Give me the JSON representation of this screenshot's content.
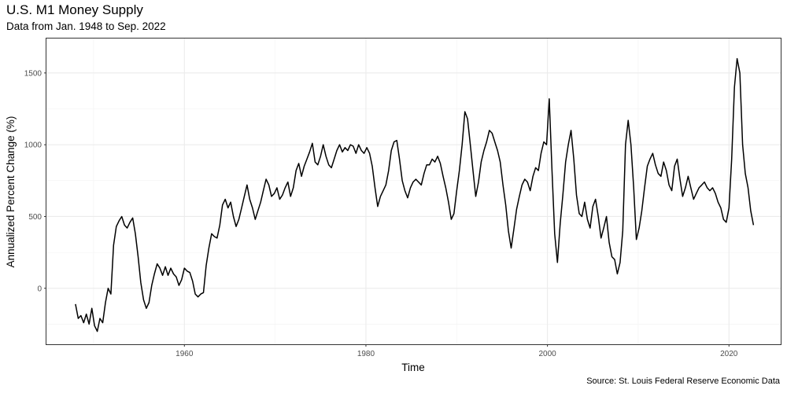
{
  "chart_data": {
    "type": "line",
    "title": "U.S. M1 Money Supply",
    "subtitle": "Data from Jan. 1948 to Sep. 2022",
    "xlabel": "Time",
    "ylabel": "Annualized Percent Change (%)",
    "caption": "Source: St. Louis Federal Reserve Economic Data",
    "xlim": [
      1944.8,
      2025.7
    ],
    "ylim": [
      -390,
      1740
    ],
    "x_ticks": [
      1960,
      1980,
      2000,
      2020
    ],
    "y_ticks": [
      0,
      500,
      1000,
      1500
    ],
    "grid": true,
    "line_color": "#000000",
    "series": [
      {
        "x": [
          1948.0,
          1948.3,
          1948.6,
          1948.9,
          1949.2,
          1949.5,
          1949.8,
          1950.1,
          1950.4,
          1950.7,
          1951.0,
          1951.3,
          1951.6,
          1951.9,
          1952.2,
          1952.5,
          1952.8,
          1953.1,
          1953.4,
          1953.7,
          1954.0,
          1954.3,
          1954.6,
          1954.9,
          1955.2,
          1955.5,
          1955.8,
          1956.1,
          1956.4,
          1956.7,
          1957.0,
          1957.3,
          1957.6,
          1957.9,
          1958.2,
          1958.5,
          1958.8,
          1959.1,
          1959.4,
          1959.7,
          1960.0,
          1960.3,
          1960.6,
          1960.9,
          1961.2,
          1961.5,
          1961.8,
          1962.1,
          1962.4,
          1962.7,
          1963.0,
          1963.3,
          1963.6,
          1963.9,
          1964.2,
          1964.5,
          1964.8,
          1965.1,
          1965.4,
          1965.7,
          1966.0,
          1966.3,
          1966.6,
          1966.9,
          1967.2,
          1967.5,
          1967.8,
          1968.1,
          1968.4,
          1968.7,
          1969.0,
          1969.3,
          1969.6,
          1969.9,
          1970.2,
          1970.5,
          1970.8,
          1971.1,
          1971.4,
          1971.7,
          1972.0,
          1972.3,
          1972.6,
          1972.9,
          1973.2,
          1973.5,
          1973.8,
          1974.1,
          1974.4,
          1974.7,
          1975.0,
          1975.3,
          1975.6,
          1975.9,
          1976.2,
          1976.5,
          1976.8,
          1977.1,
          1977.4,
          1977.7,
          1978.0,
          1978.3,
          1978.6,
          1978.9,
          1979.2,
          1979.5,
          1979.8,
          1980.1,
          1980.4,
          1980.7,
          1981.0,
          1981.3,
          1981.6,
          1981.9,
          1982.2,
          1982.5,
          1982.8,
          1983.1,
          1983.4,
          1983.7,
          1984.0,
          1984.3,
          1984.6,
          1984.9,
          1985.2,
          1985.5,
          1985.8,
          1986.1,
          1986.4,
          1986.7,
          1987.0,
          1987.3,
          1987.6,
          1987.9,
          1988.2,
          1988.5,
          1988.8,
          1989.1,
          1989.4,
          1989.7,
          1990.0,
          1990.3,
          1990.6,
          1990.9,
          1991.2,
          1991.5,
          1991.8,
          1992.1,
          1992.4,
          1992.7,
          1993.0,
          1993.3,
          1993.6,
          1993.9,
          1994.2,
          1994.5,
          1994.8,
          1995.1,
          1995.4,
          1995.7,
          1996.0,
          1996.3,
          1996.6,
          1996.9,
          1997.2,
          1997.5,
          1997.8,
          1998.1,
          1998.4,
          1998.7,
          1999.0,
          1999.3,
          1999.6,
          1999.9,
          2000.2,
          2000.5,
          2000.8,
          2001.1,
          2001.4,
          2001.7,
          2002.0,
          2002.3,
          2002.6,
          2002.9,
          2003.2,
          2003.5,
          2003.8,
          2004.1,
          2004.4,
          2004.7,
          2005.0,
          2005.3,
          2005.6,
          2005.9,
          2006.2,
          2006.5,
          2006.8,
          2007.1,
          2007.4,
          2007.7,
          2008.0,
          2008.3,
          2008.6,
          2008.9,
          2009.2,
          2009.5,
          2009.8,
          2010.1,
          2010.4,
          2010.7,
          2011.0,
          2011.3,
          2011.6,
          2011.9,
          2012.2,
          2012.5,
          2012.8,
          2013.1,
          2013.4,
          2013.7,
          2014.0,
          2014.3,
          2014.6,
          2014.9,
          2015.2,
          2015.5,
          2015.8,
          2016.1,
          2016.4,
          2016.7,
          2017.0,
          2017.3,
          2017.6,
          2017.9,
          2018.2,
          2018.5,
          2018.8,
          2019.1,
          2019.4,
          2019.7,
          2020.0,
          2020.3,
          2020.6,
          2020.9,
          2021.2,
          2021.5,
          2021.8,
          2022.1,
          2022.4,
          2022.7
        ],
        "y": [
          -110,
          -210,
          -190,
          -240,
          -180,
          -250,
          -140,
          -260,
          -300,
          -210,
          -240,
          -100,
          0,
          -40,
          300,
          430,
          470,
          500,
          440,
          420,
          460,
          490,
          380,
          220,
          40,
          -80,
          -140,
          -100,
          20,
          100,
          170,
          140,
          90,
          150,
          90,
          140,
          100,
          80,
          20,
          60,
          140,
          120,
          110,
          50,
          -40,
          -60,
          -40,
          -30,
          160,
          280,
          380,
          360,
          350,
          440,
          580,
          620,
          560,
          600,
          500,
          430,
          480,
          560,
          640,
          720,
          620,
          560,
          480,
          540,
          600,
          680,
          760,
          720,
          640,
          660,
          700,
          620,
          650,
          700,
          740,
          640,
          700,
          820,
          870,
          780,
          850,
          900,
          950,
          1010,
          880,
          860,
          920,
          1000,
          920,
          860,
          840,
          900,
          960,
          1000,
          950,
          980,
          960,
          1000,
          990,
          940,
          1000,
          960,
          940,
          980,
          940,
          850,
          700,
          570,
          640,
          680,
          720,
          820,
          960,
          1020,
          1030,
          900,
          750,
          680,
          630,
          700,
          740,
          760,
          740,
          720,
          800,
          860,
          860,
          900,
          880,
          920,
          870,
          780,
          700,
          600,
          480,
          520,
          680,
          820,
          1000,
          1230,
          1180,
          1000,
          820,
          640,
          740,
          880,
          960,
          1020,
          1100,
          1080,
          1020,
          960,
          880,
          720,
          580,
          400,
          280,
          410,
          550,
          640,
          720,
          760,
          740,
          680,
          780,
          840,
          820,
          940,
          1020,
          1000,
          1320,
          820,
          380,
          180,
          450,
          650,
          880,
          1000,
          1100,
          900,
          650,
          520,
          500,
          600,
          480,
          420,
          570,
          620,
          500,
          350,
          420,
          500,
          320,
          220,
          200,
          100,
          180,
          400,
          1000,
          1170,
          1000,
          700,
          340,
          420,
          540,
          700,
          850,
          900,
          940,
          860,
          800,
          780,
          880,
          820,
          720,
          680,
          850,
          900,
          760,
          640,
          700,
          780,
          700,
          620,
          660,
          700,
          720,
          740,
          700,
          680,
          700,
          660,
          600,
          560,
          480,
          460,
          560,
          900,
          1400,
          1600,
          1500,
          1000,
          800,
          700,
          540,
          440
        ]
      }
    ]
  }
}
